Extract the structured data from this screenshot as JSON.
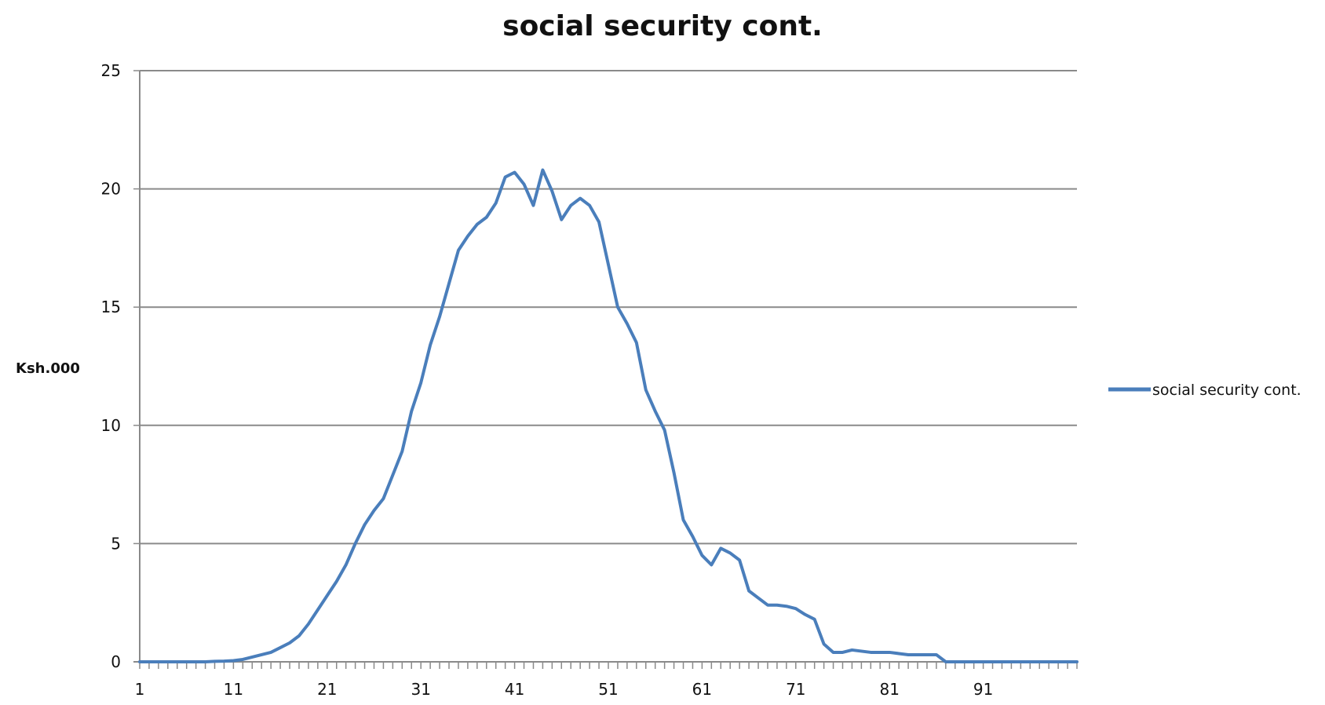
{
  "chart_data": {
    "type": "line",
    "title": "social security cont.",
    "xlabel": "",
    "ylabel": "Ksh.000",
    "ylim": [
      0,
      25
    ],
    "xlim": [
      1,
      101
    ],
    "yticks": [
      "0",
      "5",
      "10",
      "15",
      "20",
      "25"
    ],
    "xtick_labels": [
      "1",
      "11",
      "21",
      "31",
      "41",
      "51",
      "61",
      "71",
      "81",
      "91"
    ],
    "grid": true,
    "legend_position": "right",
    "series": [
      {
        "name": "social security cont.",
        "color": "#4a7ebb",
        "x": [
          1,
          2,
          3,
          4,
          5,
          6,
          7,
          8,
          9,
          10,
          11,
          12,
          13,
          14,
          15,
          16,
          17,
          18,
          19,
          20,
          21,
          22,
          23,
          24,
          25,
          26,
          27,
          28,
          29,
          30,
          31,
          32,
          33,
          34,
          35,
          36,
          37,
          38,
          39,
          40,
          41,
          42,
          43,
          44,
          45,
          46,
          47,
          48,
          49,
          50,
          51,
          52,
          53,
          54,
          55,
          56,
          57,
          58,
          59,
          60,
          61,
          62,
          63,
          64,
          65,
          66,
          67,
          68,
          69,
          70,
          71,
          72,
          73,
          74,
          75,
          76,
          77,
          78,
          79,
          80,
          81,
          82,
          83,
          84,
          85,
          86,
          87,
          88,
          89,
          90,
          91,
          92,
          93,
          94,
          95,
          96,
          97,
          98,
          99,
          100,
          101
        ],
        "values": [
          0,
          0,
          0,
          0,
          0,
          0,
          0,
          0,
          0.02,
          0.03,
          0.05,
          0.1,
          0.2,
          0.3,
          0.4,
          0.6,
          0.8,
          1.1,
          1.6,
          2.2,
          2.8,
          3.4,
          4.1,
          5.0,
          5.8,
          6.4,
          6.9,
          7.9,
          8.9,
          10.6,
          11.8,
          13.4,
          14.6,
          16.0,
          17.4,
          18.0,
          18.5,
          18.8,
          19.4,
          20.5,
          20.7,
          20.2,
          19.3,
          20.8,
          19.9,
          18.7,
          19.3,
          19.6,
          19.3,
          18.6,
          16.8,
          15.0,
          14.3,
          13.5,
          11.5,
          10.6,
          9.8,
          8.0,
          6.0,
          5.3,
          4.5,
          4.1,
          4.8,
          4.6,
          4.3,
          3.0,
          2.7,
          2.4,
          2.4,
          2.35,
          2.25,
          2.0,
          1.8,
          0.75,
          0.4,
          0.4,
          0.5,
          0.45,
          0.4,
          0.4,
          0.4,
          0.35,
          0.3,
          0.3,
          0.3,
          0.3,
          0,
          0,
          0,
          0,
          0,
          0,
          0,
          0,
          0,
          0,
          0,
          0,
          0,
          0,
          0
        ]
      }
    ]
  }
}
